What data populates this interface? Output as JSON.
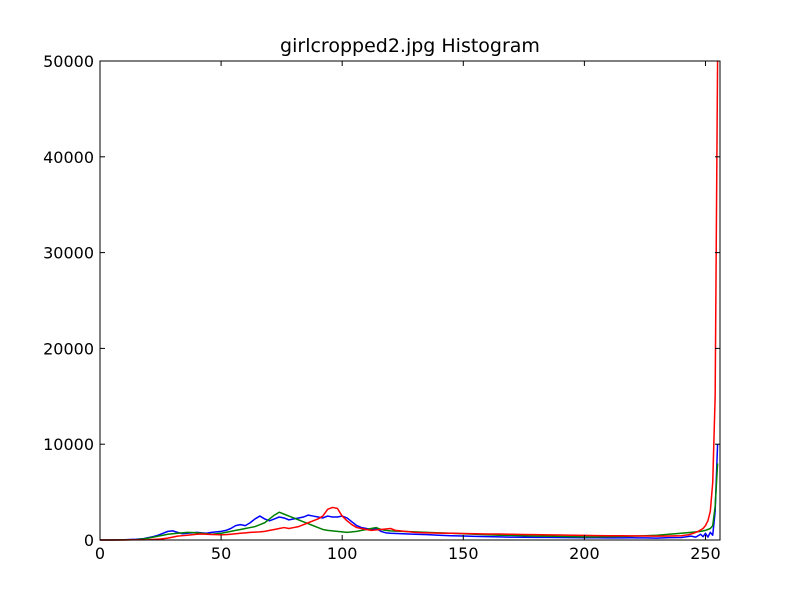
{
  "chart_data": {
    "type": "line",
    "title": "girlcropped2.jpg Histogram",
    "xlabel": "",
    "ylabel": "",
    "xlim": [
      0,
      256
    ],
    "ylim": [
      0,
      50000
    ],
    "xticks": [
      0,
      50,
      100,
      150,
      200,
      250
    ],
    "yticks": [
      0,
      10000,
      20000,
      30000,
      40000,
      50000
    ],
    "grid": false,
    "legend": "none",
    "series": [
      {
        "color": "#0000ff",
        "points": [
          [
            0,
            0
          ],
          [
            5,
            5
          ],
          [
            10,
            20
          ],
          [
            15,
            80
          ],
          [
            18,
            150
          ],
          [
            20,
            250
          ],
          [
            22,
            350
          ],
          [
            24,
            500
          ],
          [
            26,
            700
          ],
          [
            28,
            900
          ],
          [
            30,
            950
          ],
          [
            32,
            800
          ],
          [
            34,
            650
          ],
          [
            36,
            700
          ],
          [
            38,
            750
          ],
          [
            40,
            800
          ],
          [
            42,
            750
          ],
          [
            44,
            700
          ],
          [
            46,
            800
          ],
          [
            48,
            850
          ],
          [
            50,
            900
          ],
          [
            52,
            1000
          ],
          [
            54,
            1200
          ],
          [
            56,
            1500
          ],
          [
            58,
            1600
          ],
          [
            60,
            1500
          ],
          [
            62,
            1800
          ],
          [
            64,
            2200
          ],
          [
            66,
            2500
          ],
          [
            68,
            2200
          ],
          [
            70,
            2000
          ],
          [
            72,
            2200
          ],
          [
            74,
            2400
          ],
          [
            76,
            2300
          ],
          [
            78,
            2100
          ],
          [
            80,
            2200
          ],
          [
            82,
            2300
          ],
          [
            84,
            2400
          ],
          [
            86,
            2600
          ],
          [
            88,
            2500
          ],
          [
            90,
            2400
          ],
          [
            92,
            2300
          ],
          [
            94,
            2500
          ],
          [
            96,
            2400
          ],
          [
            98,
            2400
          ],
          [
            100,
            2500
          ],
          [
            102,
            2300
          ],
          [
            104,
            1900
          ],
          [
            106,
            1500
          ],
          [
            108,
            1300
          ],
          [
            110,
            1200
          ],
          [
            112,
            1100
          ],
          [
            114,
            1200
          ],
          [
            116,
            900
          ],
          [
            118,
            750
          ],
          [
            120,
            700
          ],
          [
            125,
            650
          ],
          [
            130,
            600
          ],
          [
            135,
            560
          ],
          [
            140,
            500
          ],
          [
            145,
            450
          ],
          [
            150,
            420
          ],
          [
            155,
            380
          ],
          [
            160,
            350
          ],
          [
            165,
            320
          ],
          [
            170,
            300
          ],
          [
            175,
            290
          ],
          [
            180,
            280
          ],
          [
            185,
            270
          ],
          [
            190,
            260
          ],
          [
            195,
            250
          ],
          [
            200,
            240
          ],
          [
            205,
            240
          ],
          [
            210,
            220
          ],
          [
            215,
            220
          ],
          [
            220,
            230
          ],
          [
            225,
            220
          ],
          [
            230,
            200
          ],
          [
            235,
            250
          ],
          [
            240,
            260
          ],
          [
            244,
            400
          ],
          [
            246,
            300
          ],
          [
            248,
            600
          ],
          [
            249,
            350
          ],
          [
            250,
            700
          ],
          [
            251,
            300
          ],
          [
            252,
            800
          ],
          [
            253,
            500
          ],
          [
            254,
            3000
          ],
          [
            255,
            10000
          ]
        ]
      },
      {
        "color": "#008000",
        "points": [
          [
            0,
            0
          ],
          [
            10,
            10
          ],
          [
            15,
            40
          ],
          [
            18,
            120
          ],
          [
            20,
            200
          ],
          [
            22,
            300
          ],
          [
            24,
            400
          ],
          [
            26,
            500
          ],
          [
            28,
            600
          ],
          [
            30,
            650
          ],
          [
            32,
            700
          ],
          [
            34,
            750
          ],
          [
            36,
            800
          ],
          [
            38,
            780
          ],
          [
            40,
            750
          ],
          [
            42,
            700
          ],
          [
            44,
            650
          ],
          [
            46,
            600
          ],
          [
            48,
            650
          ],
          [
            50,
            700
          ],
          [
            52,
            800
          ],
          [
            54,
            900
          ],
          [
            56,
            1000
          ],
          [
            58,
            1100
          ],
          [
            60,
            1200
          ],
          [
            62,
            1300
          ],
          [
            64,
            1400
          ],
          [
            66,
            1600
          ],
          [
            68,
            1800
          ],
          [
            70,
            2200
          ],
          [
            72,
            2600
          ],
          [
            74,
            2900
          ],
          [
            76,
            2700
          ],
          [
            78,
            2500
          ],
          [
            80,
            2300
          ],
          [
            82,
            2100
          ],
          [
            84,
            1900
          ],
          [
            86,
            1700
          ],
          [
            88,
            1500
          ],
          [
            90,
            1300
          ],
          [
            92,
            1100
          ],
          [
            94,
            1000
          ],
          [
            96,
            950
          ],
          [
            98,
            900
          ],
          [
            100,
            850
          ],
          [
            102,
            800
          ],
          [
            104,
            850
          ],
          [
            106,
            900
          ],
          [
            108,
            1000
          ],
          [
            110,
            1100
          ],
          [
            112,
            1200
          ],
          [
            114,
            1300
          ],
          [
            116,
            1100
          ],
          [
            118,
            1000
          ],
          [
            120,
            950
          ],
          [
            125,
            900
          ],
          [
            130,
            850
          ],
          [
            135,
            800
          ],
          [
            140,
            750
          ],
          [
            145,
            700
          ],
          [
            150,
            650
          ],
          [
            155,
            600
          ],
          [
            160,
            550
          ],
          [
            165,
            500
          ],
          [
            170,
            480
          ],
          [
            175,
            450
          ],
          [
            180,
            420
          ],
          [
            185,
            400
          ],
          [
            190,
            380
          ],
          [
            195,
            350
          ],
          [
            200,
            330
          ],
          [
            205,
            330
          ],
          [
            210,
            350
          ],
          [
            215,
            380
          ],
          [
            220,
            400
          ],
          [
            225,
            450
          ],
          [
            230,
            500
          ],
          [
            235,
            600
          ],
          [
            240,
            700
          ],
          [
            244,
            800
          ],
          [
            246,
            850
          ],
          [
            248,
            900
          ],
          [
            250,
            1000
          ],
          [
            252,
            1200
          ],
          [
            253,
            1500
          ],
          [
            254,
            3500
          ],
          [
            255,
            8000
          ]
        ]
      },
      {
        "color": "#ff0000",
        "points": [
          [
            0,
            0
          ],
          [
            10,
            5
          ],
          [
            20,
            30
          ],
          [
            25,
            100
          ],
          [
            28,
            200
          ],
          [
            30,
            300
          ],
          [
            32,
            400
          ],
          [
            34,
            450
          ],
          [
            36,
            500
          ],
          [
            38,
            550
          ],
          [
            40,
            600
          ],
          [
            42,
            620
          ],
          [
            44,
            600
          ],
          [
            46,
            580
          ],
          [
            48,
            560
          ],
          [
            50,
            550
          ],
          [
            52,
            560
          ],
          [
            54,
            600
          ],
          [
            56,
            650
          ],
          [
            58,
            700
          ],
          [
            60,
            750
          ],
          [
            62,
            800
          ],
          [
            64,
            820
          ],
          [
            66,
            850
          ],
          [
            68,
            900
          ],
          [
            70,
            1000
          ],
          [
            72,
            1100
          ],
          [
            74,
            1200
          ],
          [
            76,
            1300
          ],
          [
            78,
            1200
          ],
          [
            80,
            1300
          ],
          [
            82,
            1400
          ],
          [
            84,
            1600
          ],
          [
            86,
            1800
          ],
          [
            88,
            2000
          ],
          [
            90,
            2200
          ],
          [
            92,
            2500
          ],
          [
            94,
            3200
          ],
          [
            96,
            3400
          ],
          [
            98,
            3300
          ],
          [
            100,
            2500
          ],
          [
            102,
            2000
          ],
          [
            104,
            1600
          ],
          [
            106,
            1300
          ],
          [
            108,
            1200
          ],
          [
            110,
            1100
          ],
          [
            112,
            1000
          ],
          [
            114,
            1050
          ],
          [
            116,
            1100
          ],
          [
            118,
            1150
          ],
          [
            120,
            1200
          ],
          [
            122,
            1000
          ],
          [
            124,
            950
          ],
          [
            126,
            900
          ],
          [
            128,
            850
          ],
          [
            130,
            800
          ],
          [
            135,
            750
          ],
          [
            140,
            720
          ],
          [
            145,
            700
          ],
          [
            150,
            680
          ],
          [
            155,
            650
          ],
          [
            160,
            630
          ],
          [
            165,
            620
          ],
          [
            170,
            600
          ],
          [
            175,
            580
          ],
          [
            180,
            560
          ],
          [
            185,
            540
          ],
          [
            190,
            520
          ],
          [
            195,
            500
          ],
          [
            200,
            480
          ],
          [
            205,
            460
          ],
          [
            210,
            450
          ],
          [
            215,
            440
          ],
          [
            220,
            430
          ],
          [
            225,
            420
          ],
          [
            230,
            410
          ],
          [
            235,
            420
          ],
          [
            240,
            450
          ],
          [
            243,
            550
          ],
          [
            245,
            700
          ],
          [
            247,
            900
          ],
          [
            249,
            1200
          ],
          [
            250,
            1500
          ],
          [
            251,
            2000
          ],
          [
            252,
            3000
          ],
          [
            253,
            6000
          ],
          [
            254,
            15000
          ],
          [
            255,
            50000
          ]
        ]
      }
    ]
  }
}
